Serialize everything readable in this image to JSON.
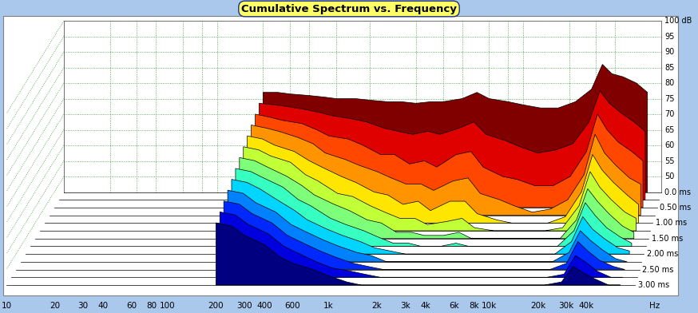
{
  "chart_data": {
    "type": "waterfall",
    "title": "Cumulative Spectrum vs. Frequency",
    "xlabel": "Hz",
    "log": "x",
    "grid": true,
    "xlim": [
      10,
      80000
    ],
    "xticks": [
      10,
      20,
      30,
      40,
      60,
      80,
      100,
      200,
      300,
      400,
      600,
      {
        "value": 1000,
        "label": "1k"
      },
      {
        "value": 2000,
        "label": "2k"
      },
      {
        "value": 3000,
        "label": "3k"
      },
      {
        "value": 4000,
        "label": "4k"
      },
      {
        "value": 6000,
        "label": "6k"
      },
      {
        "value": 8000,
        "label": "8k"
      },
      {
        "value": 10000,
        "label": "10k"
      },
      {
        "value": 20000,
        "label": "20k"
      },
      {
        "value": 30000,
        "label": "30k"
      },
      {
        "value": 40000,
        "label": "40k"
      }
    ],
    "ylim": [
      45,
      100
    ],
    "yticks": [
      50,
      55,
      60,
      65,
      70,
      75,
      80,
      85,
      90,
      95,
      {
        "value": 100,
        "label": "100 dB"
      }
    ],
    "tlim": [
      0,
      3
    ],
    "time_ticks": [
      {
        "value": 0,
        "label": "0.0 ms"
      },
      {
        "value": 0.5,
        "label": "0.50 ms"
      },
      {
        "value": 1.0,
        "label": "1.00 ms"
      },
      {
        "value": 1.5,
        "label": "1.50 ms"
      },
      {
        "value": 2.0,
        "label": "2.00 ms"
      },
      {
        "value": 2.5,
        "label": "2.50 ms"
      },
      {
        "value": 3.0,
        "label": "3.00 ms"
      }
    ],
    "x": [
      200,
      250,
      300,
      400,
      500,
      600,
      800,
      1000,
      1300,
      1600,
      2000,
      2500,
      3000,
      4000,
      5000,
      6000,
      8000,
      10000,
      13000,
      17000,
      22000,
      28000,
      33000,
      38000,
      45000,
      55000,
      65000
    ],
    "series": [
      {
        "time": 0.0,
        "values": [
          77,
          77,
          76.5,
          76,
          75.5,
          75,
          75,
          74.5,
          74,
          74,
          73.5,
          74,
          74,
          75,
          77,
          75,
          74,
          73,
          72,
          72,
          74,
          78,
          86,
          83,
          82,
          80,
          77
        ]
      },
      {
        "time": 0.25,
        "values": [
          76,
          75.5,
          75,
          74,
          73,
          72,
          71,
          70,
          68,
          67,
          66,
          67,
          66,
          68,
          70,
          66,
          64,
          62,
          60,
          61,
          63,
          70,
          80,
          76,
          73,
          70,
          67
        ]
      },
      {
        "time": 0.5,
        "values": [
          75,
          74,
          73,
          72,
          70,
          68,
          67,
          65,
          62,
          62,
          59,
          60,
          58,
          62,
          63,
          58,
          55,
          54,
          52,
          52,
          55,
          63,
          75,
          70,
          66,
          63,
          60
        ]
      },
      {
        "time": 0.75,
        "values": [
          74,
          73,
          72,
          70,
          68,
          65,
          63,
          61,
          59,
          57,
          55,
          55,
          53,
          56,
          57,
          52,
          50,
          48,
          46,
          47,
          50,
          58,
          71,
          65,
          61,
          57,
          55
        ]
      },
      {
        "time": 1.0,
        "values": [
          73,
          72,
          70,
          68,
          65,
          63,
          60,
          58,
          55,
          54,
          51,
          52,
          49,
          52,
          52,
          48,
          46,
          45,
          45,
          45,
          47,
          55,
          67,
          62,
          58,
          54,
          51
        ]
      },
      {
        "time": 1.25,
        "values": [
          72,
          71,
          69,
          67,
          63,
          61,
          57,
          56,
          53,
          51,
          49,
          49,
          47,
          48,
          49,
          46,
          45,
          45,
          45,
          45,
          46,
          53,
          64,
          59,
          55,
          51,
          49
        ]
      },
      {
        "time": 1.5,
        "values": [
          71,
          70,
          68,
          65,
          62,
          59,
          56,
          54,
          51,
          50,
          47,
          47,
          46,
          46,
          47,
          45,
          45,
          45,
          45,
          45,
          45,
          51,
          61,
          57,
          53,
          49,
          47
        ]
      },
      {
        "time": 1.75,
        "values": [
          70,
          69,
          67,
          64,
          60,
          58,
          54,
          52,
          50,
          48,
          46,
          46,
          45,
          45,
          46,
          45,
          45,
          45,
          45,
          45,
          45,
          50,
          59,
          55,
          51,
          48,
          46
        ]
      },
      {
        "time": 2.0,
        "values": [
          69,
          68,
          66,
          62,
          59,
          56,
          53,
          51,
          49,
          47,
          46,
          45,
          45,
          45,
          45,
          45,
          45,
          45,
          45,
          45,
          45,
          49,
          57,
          53,
          50,
          47,
          46
        ]
      },
      {
        "time": 2.25,
        "values": [
          68,
          67,
          64,
          61,
          57,
          55,
          52,
          50,
          48,
          47,
          45,
          45,
          45,
          45,
          45,
          45,
          45,
          45,
          45,
          45,
          45,
          48,
          55,
          52,
          49,
          46,
          45
        ]
      },
      {
        "time": 2.5,
        "values": [
          67,
          66,
          63,
          60,
          56,
          54,
          51,
          49,
          47,
          46,
          45,
          45,
          45,
          45,
          45,
          45,
          45,
          45,
          45,
          45,
          45,
          47,
          54,
          51,
          48,
          46,
          45
        ]
      },
      {
        "time": 2.75,
        "values": [
          66,
          65,
          62,
          59,
          55,
          53,
          50,
          48,
          47,
          46,
          45,
          45,
          45,
          45,
          45,
          45,
          45,
          45,
          45,
          45,
          45,
          46,
          52,
          50,
          47,
          45,
          45
        ]
      },
      {
        "time": 3.0,
        "values": [
          65,
          64,
          61,
          58,
          54,
          52,
          50,
          48,
          46,
          45,
          45,
          45,
          45,
          45,
          45,
          45,
          45,
          45,
          45,
          45,
          45,
          46,
          51,
          49,
          47,
          45,
          45
        ]
      }
    ]
  }
}
